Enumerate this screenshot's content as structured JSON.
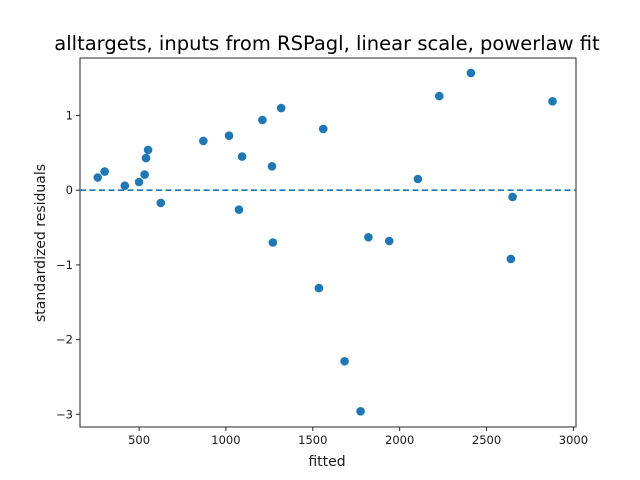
{
  "chart_data": {
    "type": "scatter",
    "title": "alltargets, inputs from RSPagl, linear scale, powerlaw fit",
    "xlabel": "fitted",
    "ylabel": "standardized residuals",
    "xlim": [
      160,
      3015
    ],
    "ylim": [
      -3.17,
      1.77
    ],
    "xticks": [
      500,
      1000,
      1500,
      2000,
      2500,
      3000
    ],
    "yticks": [
      -3,
      -2,
      -1,
      0,
      1
    ],
    "reference_line": {
      "y": 0,
      "style": "dashed"
    },
    "grid": false,
    "color": "#1f77b4",
    "points": [
      {
        "x": 262,
        "y": 0.17
      },
      {
        "x": 302,
        "y": 0.25
      },
      {
        "x": 418,
        "y": 0.06
      },
      {
        "x": 500,
        "y": 0.11
      },
      {
        "x": 532,
        "y": 0.21
      },
      {
        "x": 540,
        "y": 0.43
      },
      {
        "x": 552,
        "y": 0.54
      },
      {
        "x": 625,
        "y": -0.17
      },
      {
        "x": 870,
        "y": 0.66
      },
      {
        "x": 1018,
        "y": 0.73
      },
      {
        "x": 1075,
        "y": -0.26
      },
      {
        "x": 1093,
        "y": 0.45
      },
      {
        "x": 1210,
        "y": 0.94
      },
      {
        "x": 1265,
        "y": 0.32
      },
      {
        "x": 1270,
        "y": -0.7
      },
      {
        "x": 1318,
        "y": 1.1
      },
      {
        "x": 1535,
        "y": -1.31
      },
      {
        "x": 1560,
        "y": 0.82
      },
      {
        "x": 1683,
        "y": -2.29
      },
      {
        "x": 1775,
        "y": -2.96
      },
      {
        "x": 1820,
        "y": -0.63
      },
      {
        "x": 1940,
        "y": -0.68
      },
      {
        "x": 2105,
        "y": 0.15
      },
      {
        "x": 2228,
        "y": 1.26
      },
      {
        "x": 2410,
        "y": 1.57
      },
      {
        "x": 2640,
        "y": -0.92
      },
      {
        "x": 2650,
        "y": -0.09
      },
      {
        "x": 2880,
        "y": 1.19
      }
    ]
  }
}
